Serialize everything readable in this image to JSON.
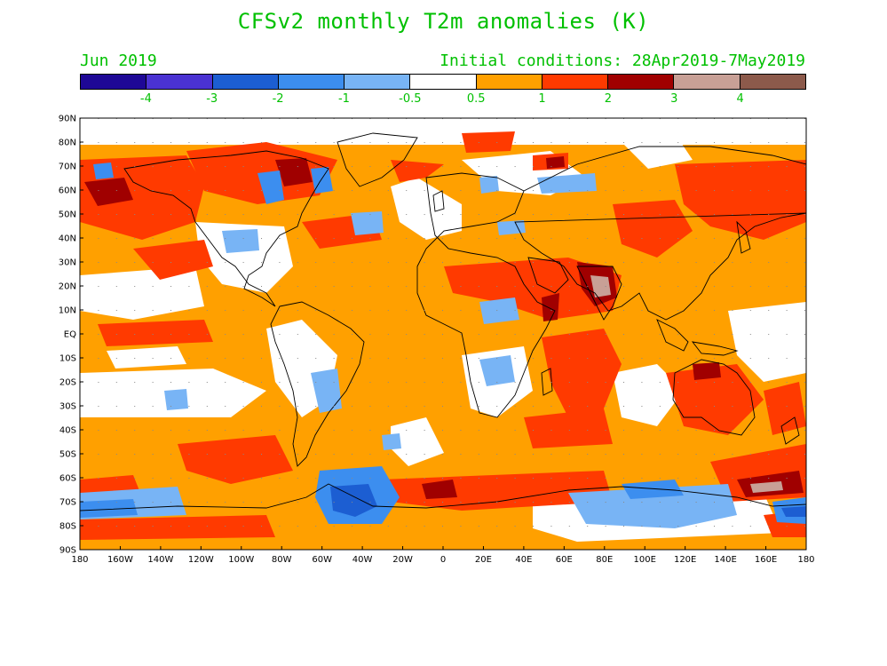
{
  "header": {
    "title": "CFSv2 monthly T2m anomalies (K)",
    "month": "Jun 2019",
    "initial_conditions": "Initial conditions: 28Apr2019-7May2019"
  },
  "colorbar": {
    "colors": [
      "#1e0896",
      "#4a32d2",
      "#1c5ed2",
      "#3c8eef",
      "#78b4f5",
      "#ffffff",
      "#ffa000",
      "#ff3a00",
      "#a00000",
      "#c8a096",
      "#8c5a4b"
    ],
    "labels": [
      "-4",
      "-3",
      "-2",
      "-1",
      "-0.5",
      "0.5",
      "1",
      "2",
      "3",
      "4"
    ]
  },
  "axes": {
    "lat_labels": [
      "90N",
      "80N",
      "70N",
      "60N",
      "50N",
      "40N",
      "30N",
      "20N",
      "10N",
      "EQ",
      "10S",
      "20S",
      "30S",
      "40S",
      "50S",
      "60S",
      "70S",
      "80S",
      "90S"
    ],
    "lon_labels": [
      "180",
      "160W",
      "140W",
      "120W",
      "100W",
      "80W",
      "60W",
      "40W",
      "20W",
      "0",
      "20E",
      "40E",
      "60E",
      "80E",
      "100E",
      "120E",
      "140E",
      "160E",
      "180"
    ]
  }
}
